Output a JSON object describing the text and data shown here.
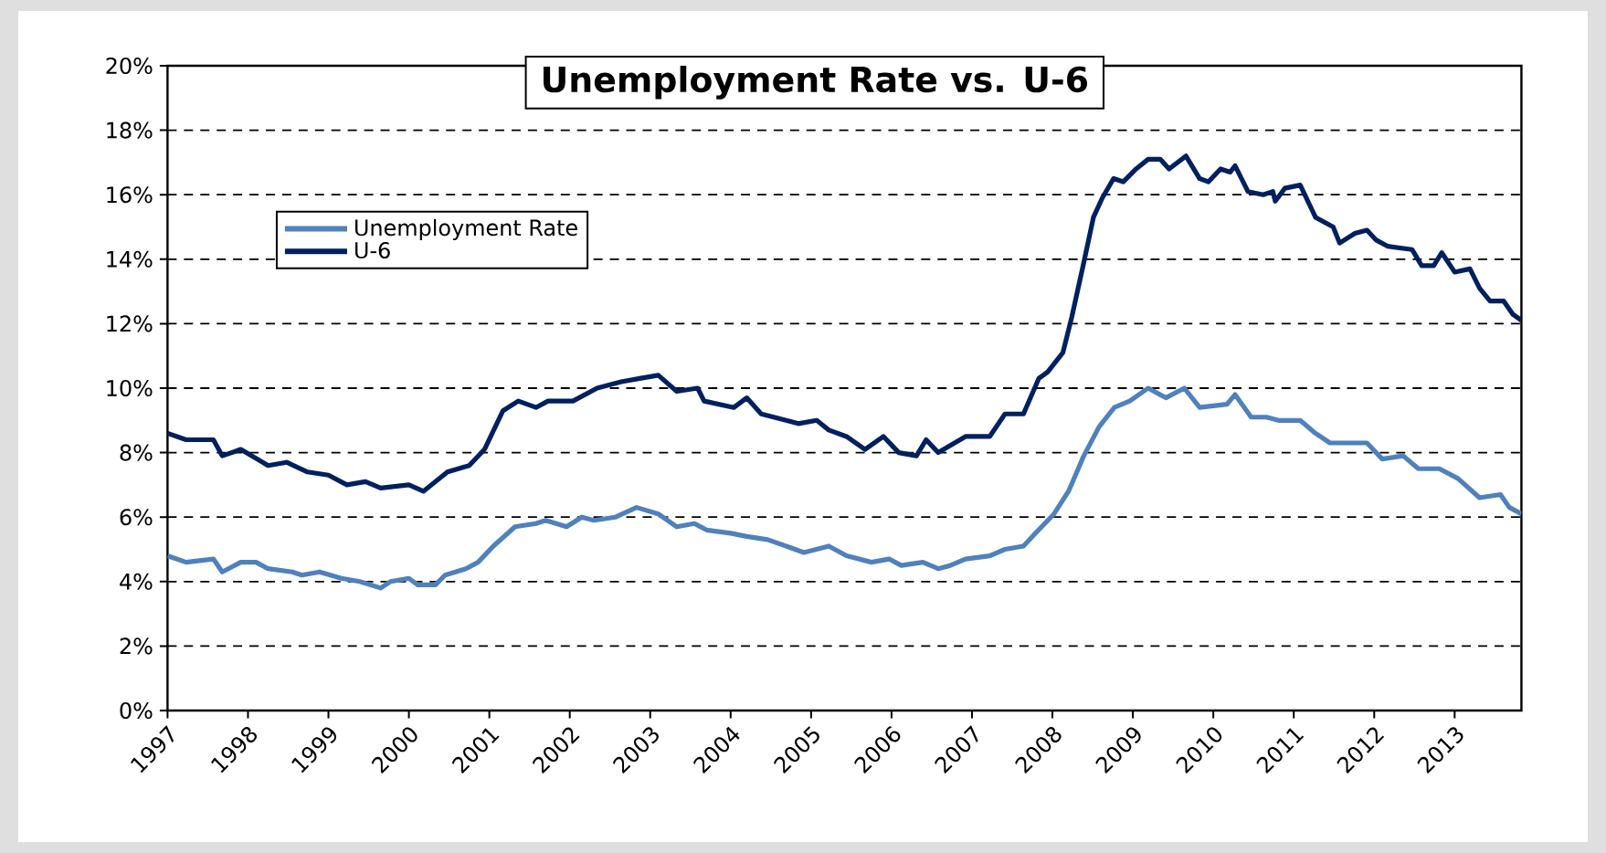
{
  "chart_data": {
    "type": "line",
    "title": "Unemployment Rate vs. U-6",
    "xlim": [
      1997,
      2013.83
    ],
    "xticks": [
      1997,
      1998,
      1999,
      2000,
      2001,
      2002,
      2003,
      2004,
      2005,
      2006,
      2007,
      2008,
      2009,
      2010,
      2011,
      2012,
      2013
    ],
    "ylim": [
      0,
      20
    ],
    "yticks": [
      {
        "value": 0,
        "label": "0%"
      },
      {
        "value": 2,
        "label": "2%"
      },
      {
        "value": 4,
        "label": "4%"
      },
      {
        "value": 6,
        "label": "6%"
      },
      {
        "value": 8,
        "label": "8%"
      },
      {
        "value": 10,
        "label": "10%"
      },
      {
        "value": 12,
        "label": "12%"
      },
      {
        "value": 14,
        "label": "14%"
      },
      {
        "value": 16,
        "label": "16%"
      },
      {
        "value": 18,
        "label": "18%"
      },
      {
        "value": 20,
        "label": "20%"
      }
    ],
    "grid": "y",
    "legend": "top left",
    "marker": "none",
    "line_style": "solid",
    "series": [
      {
        "name": "Unemployment Rate",
        "color": "#4f81bd",
        "x": [
          1997,
          1997.23,
          1997.57,
          1997.68,
          1997.91,
          1998.1,
          1998.25,
          1998.55,
          1998.67,
          1998.89,
          1999.16,
          1999.39,
          1999.65,
          1999.77,
          2000,
          2000.11,
          2000.33,
          2000.45,
          2000.71,
          2000.86,
          2001.05,
          2001.32,
          2001.58,
          2001.7,
          2001.96,
          2002.15,
          2002.3,
          2002.57,
          2002.83,
          2003.1,
          2003.33,
          2003.55,
          2003.7,
          2004,
          2004.2,
          2004.46,
          2004.69,
          2004.91,
          2005.22,
          2005.44,
          2005.75,
          2005.97,
          2006.12,
          2006.39,
          2006.58,
          2006.73,
          2006.92,
          2007.22,
          2007.41,
          2007.64,
          2007.79,
          2008.02,
          2008.2,
          2008.39,
          2008.58,
          2008.77,
          2008.96,
          2009.19,
          2009.41,
          2009.64,
          2009.83,
          2010.17,
          2010.27,
          2010.47,
          2010.66,
          2010.81,
          2011.08,
          2011.27,
          2011.45,
          2011.91,
          2012.1,
          2012.36,
          2012.55,
          2012.81,
          2013.04,
          2013.31,
          2013.57,
          2013.68,
          2013.83
        ],
        "values": [
          4.8,
          4.6,
          4.7,
          4.3,
          4.6,
          4.6,
          4.4,
          4.3,
          4.2,
          4.3,
          4.1,
          4.0,
          3.8,
          4.0,
          4.1,
          3.9,
          3.9,
          4.2,
          4.4,
          4.6,
          5.1,
          5.7,
          5.8,
          5.9,
          5.7,
          6.0,
          5.9,
          6.0,
          6.3,
          6.1,
          5.7,
          5.8,
          5.6,
          5.5,
          5.4,
          5.3,
          5.1,
          4.9,
          5.1,
          4.8,
          4.6,
          4.7,
          4.5,
          4.6,
          4.4,
          4.5,
          4.7,
          4.8,
          5.0,
          5.1,
          5.5,
          6.1,
          6.8,
          7.9,
          8.8,
          9.4,
          9.6,
          10.0,
          9.7,
          10.0,
          9.4,
          9.5,
          9.8,
          9.1,
          9.1,
          9.0,
          9.0,
          8.6,
          8.3,
          8.3,
          7.8,
          7.9,
          7.5,
          7.5,
          7.2,
          6.6,
          6.7,
          6.3,
          6.1
        ]
      },
      {
        "name": "U-6",
        "color": "#002060",
        "x": [
          1997,
          1997.23,
          1997.57,
          1997.68,
          1997.91,
          1998.25,
          1998.48,
          1998.74,
          1999,
          1999.23,
          1999.46,
          1999.65,
          2000,
          2000.18,
          2000.48,
          2000.75,
          2000.94,
          2001.17,
          2001.36,
          2001.58,
          2001.73,
          2002.04,
          2002.34,
          2002.64,
          2002.87,
          2003.1,
          2003.33,
          2003.59,
          2003.67,
          2004.04,
          2004.2,
          2004.38,
          2004.69,
          2004.84,
          2005.07,
          2005.22,
          2005.44,
          2005.67,
          2005.9,
          2006.09,
          2006.31,
          2006.43,
          2006.58,
          2006.92,
          2007.22,
          2007.41,
          2007.64,
          2007.83,
          2007.94,
          2008.13,
          2008.24,
          2008.39,
          2008.51,
          2008.62,
          2008.76,
          2008.88,
          2009.04,
          2009.19,
          2009.34,
          2009.45,
          2009.66,
          2009.83,
          2009.94,
          2010.09,
          2010.21,
          2010.27,
          2010.43,
          2010.62,
          2010.74,
          2010.77,
          2010.89,
          2011.08,
          2011.27,
          2011.49,
          2011.57,
          2011.76,
          2011.91,
          2012.02,
          2012.17,
          2012.47,
          2012.59,
          2012.74,
          2012.84,
          2013,
          2013.19,
          2013.31,
          2013.44,
          2013.61,
          2013.72,
          2013.83
        ],
        "values": [
          8.6,
          8.4,
          8.4,
          7.9,
          8.1,
          7.6,
          7.7,
          7.4,
          7.3,
          7.0,
          7.1,
          6.9,
          7.0,
          6.8,
          7.4,
          7.6,
          8.1,
          9.3,
          9.6,
          9.4,
          9.6,
          9.6,
          10.0,
          10.2,
          10.3,
          10.4,
          9.9,
          10.0,
          9.6,
          9.4,
          9.7,
          9.2,
          9.0,
          8.9,
          9.0,
          8.7,
          8.5,
          8.1,
          8.5,
          8.0,
          7.9,
          8.4,
          8.0,
          8.5,
          8.5,
          9.2,
          9.2,
          10.3,
          10.5,
          11.1,
          12.2,
          13.9,
          15.3,
          15.9,
          16.5,
          16.4,
          16.8,
          17.1,
          17.1,
          16.8,
          17.2,
          16.5,
          16.4,
          16.8,
          16.7,
          16.9,
          16.1,
          16.0,
          16.1,
          15.8,
          16.2,
          16.3,
          15.3,
          15.0,
          14.5,
          14.8,
          14.9,
          14.6,
          14.4,
          14.3,
          13.8,
          13.8,
          14.2,
          13.6,
          13.7,
          13.1,
          12.7,
          12.7,
          12.3,
          12.1
        ]
      }
    ]
  }
}
